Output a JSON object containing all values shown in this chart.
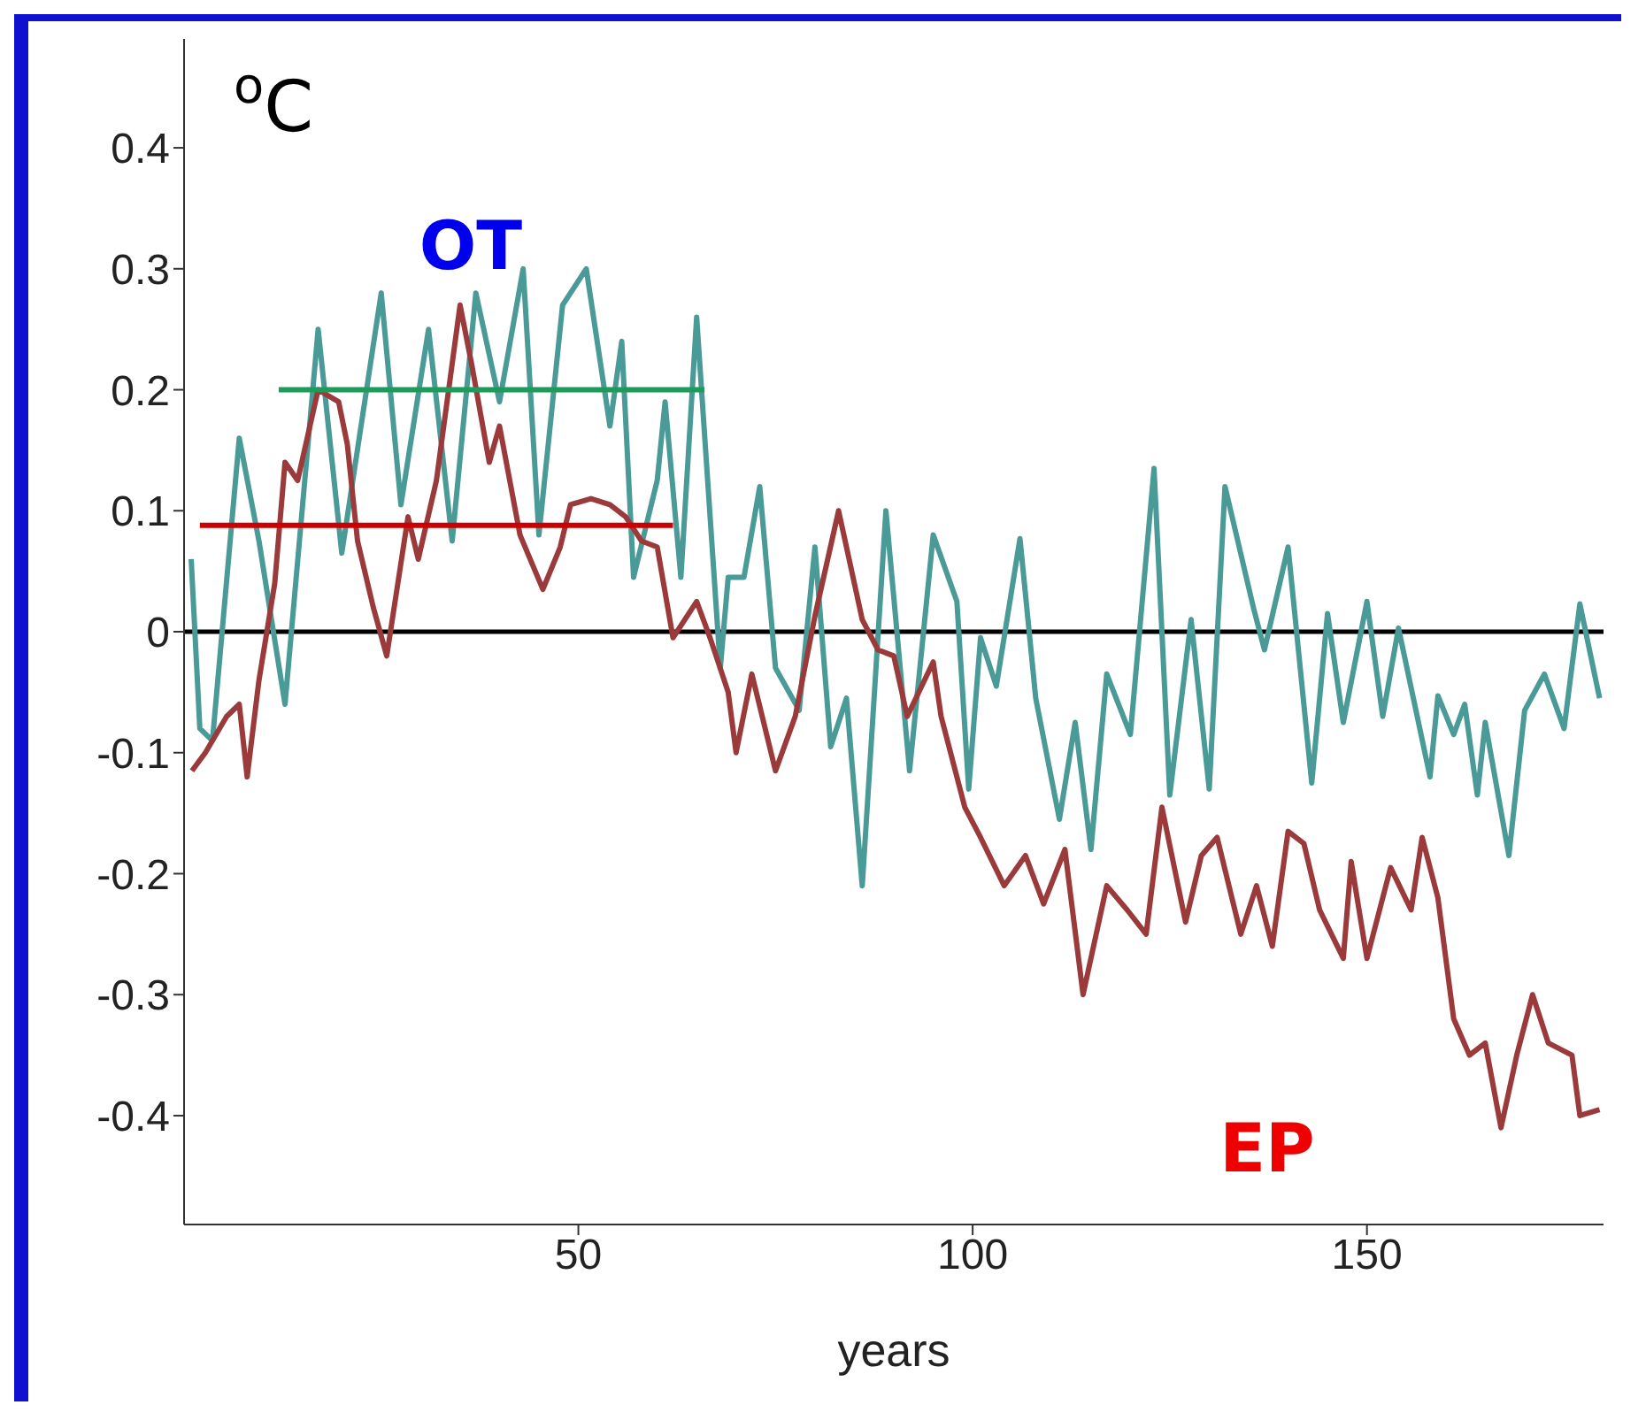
{
  "chart_data": {
    "type": "line",
    "xlabel": "years",
    "ylabel": "$^{o}$C",
    "xlim": [
      0,
      180
    ],
    "xticks": [
      50,
      100,
      150
    ],
    "ylim": [
      -0.49,
      0.49
    ],
    "yticks": [
      -0.4,
      -0.3,
      -0.2,
      -0.1,
      0,
      0.1,
      0.2,
      0.3,
      0.4
    ],
    "marker": "none",
    "line_style": "solid",
    "series": [
      {
        "color": "#4a9a98",
        "x": [
          0.9,
          2,
          3.6,
          7,
          9.5,
          12.8,
          17,
          20,
          25,
          27.5,
          31,
          34,
          37,
          40,
          43,
          45,
          48,
          51,
          54,
          55.5,
          57,
          60,
          61,
          63,
          65,
          68,
          69,
          71,
          73,
          75,
          78,
          80,
          82,
          84,
          86,
          89,
          92,
          95,
          98,
          99.5,
          101,
          103,
          106,
          108,
          111,
          113,
          115,
          117,
          120,
          123,
          125,
          127.7,
          130,
          132,
          135.6,
          137,
          140,
          143,
          145,
          147,
          150,
          152,
          154,
          158,
          159,
          161,
          162.4,
          164,
          165,
          168,
          170,
          172.5,
          175,
          177,
          179.5
        ],
        "values": [
          0.06,
          -0.08,
          -0.09,
          0.16,
          0.075,
          -0.06,
          0.25,
          0.065,
          0.28,
          0.105,
          0.25,
          0.075,
          0.28,
          0.19,
          0.3,
          0.08,
          0.27,
          0.3,
          0.17,
          0.24,
          0.045,
          0.125,
          0.19,
          0.045,
          0.26,
          -0.03,
          0.045,
          0.045,
          0.12,
          -0.03,
          -0.065,
          0.07,
          -0.095,
          -0.055,
          -0.21,
          0.1,
          -0.115,
          0.08,
          0.025,
          -0.13,
          -0.005,
          -0.045,
          0.077,
          -0.055,
          -0.155,
          -0.075,
          -0.18,
          -0.035,
          -0.085,
          0.135,
          -0.135,
          0.01,
          -0.13,
          0.12,
          0.02,
          -0.015,
          0.07,
          -0.125,
          0.015,
          -0.075,
          0.025,
          -0.07,
          0.003,
          -0.12,
          -0.053,
          -0.085,
          -0.06,
          -0.135,
          -0.075,
          -0.185,
          -0.065,
          -0.035,
          -0.08,
          0.023,
          -0.055
        ]
      },
      {
        "color": "#9b3a3a",
        "x": [
          1,
          2.7,
          5.4,
          7,
          8,
          9.5,
          11.5,
          12.8,
          14.4,
          17,
          19.6,
          20.7,
          22,
          24,
          25.7,
          28.4,
          29.7,
          32,
          35,
          36.5,
          38.7,
          40,
          42.6,
          45.5,
          47.7,
          49,
          51.6,
          54,
          56,
          58,
          60,
          62,
          65,
          66.7,
          69,
          70,
          72,
          75,
          77.5,
          80,
          83,
          86,
          88,
          90,
          91.7,
          95,
          96,
          99,
          101,
          104,
          106.7,
          109,
          111.7,
          114,
          117,
          119.6,
          122,
          124,
          127,
          129,
          131,
          134,
          136,
          138,
          140,
          142,
          144,
          147,
          148,
          150,
          153,
          155.6,
          157,
          159,
          161,
          163,
          165,
          167,
          169,
          171,
          173,
          176,
          177,
          179.5
        ],
        "values": [
          -0.115,
          -0.1,
          -0.07,
          -0.06,
          -0.12,
          -0.04,
          0.04,
          0.14,
          0.125,
          0.2,
          0.19,
          0.155,
          0.075,
          0.02,
          -0.02,
          0.095,
          0.06,
          0.125,
          0.27,
          0.22,
          0.14,
          0.17,
          0.08,
          0.035,
          0.07,
          0.105,
          0.11,
          0.105,
          0.095,
          0.075,
          0.07,
          -0.005,
          0.025,
          -0.005,
          -0.05,
          -0.1,
          -0.035,
          -0.115,
          -0.07,
          0.013,
          0.1,
          0.01,
          -0.015,
          -0.02,
          -0.07,
          -0.025,
          -0.07,
          -0.145,
          -0.17,
          -0.21,
          -0.185,
          -0.225,
          -0.18,
          -0.3,
          -0.21,
          -0.23,
          -0.25,
          -0.145,
          -0.24,
          -0.185,
          -0.17,
          -0.25,
          -0.21,
          -0.26,
          -0.165,
          -0.175,
          -0.23,
          -0.27,
          -0.19,
          -0.27,
          -0.195,
          -0.23,
          -0.17,
          -0.22,
          -0.32,
          -0.35,
          -0.34,
          -0.41,
          -0.35,
          -0.3,
          -0.34,
          -0.35,
          -0.4,
          -0.395
        ]
      },
      {
        "color": "#1e9a5a",
        "x": [
          12,
          66
        ],
        "values": [
          0.2,
          0.2
        ]
      },
      {
        "color": "#cc0000",
        "x": [
          2,
          62
        ],
        "values": [
          0.088,
          0.088
        ]
      }
    ],
    "ref_lines": [
      {
        "axis": "y",
        "value": 0,
        "color": "#000000"
      }
    ],
    "annotations": [
      "OT",
      "EP"
    ]
  }
}
